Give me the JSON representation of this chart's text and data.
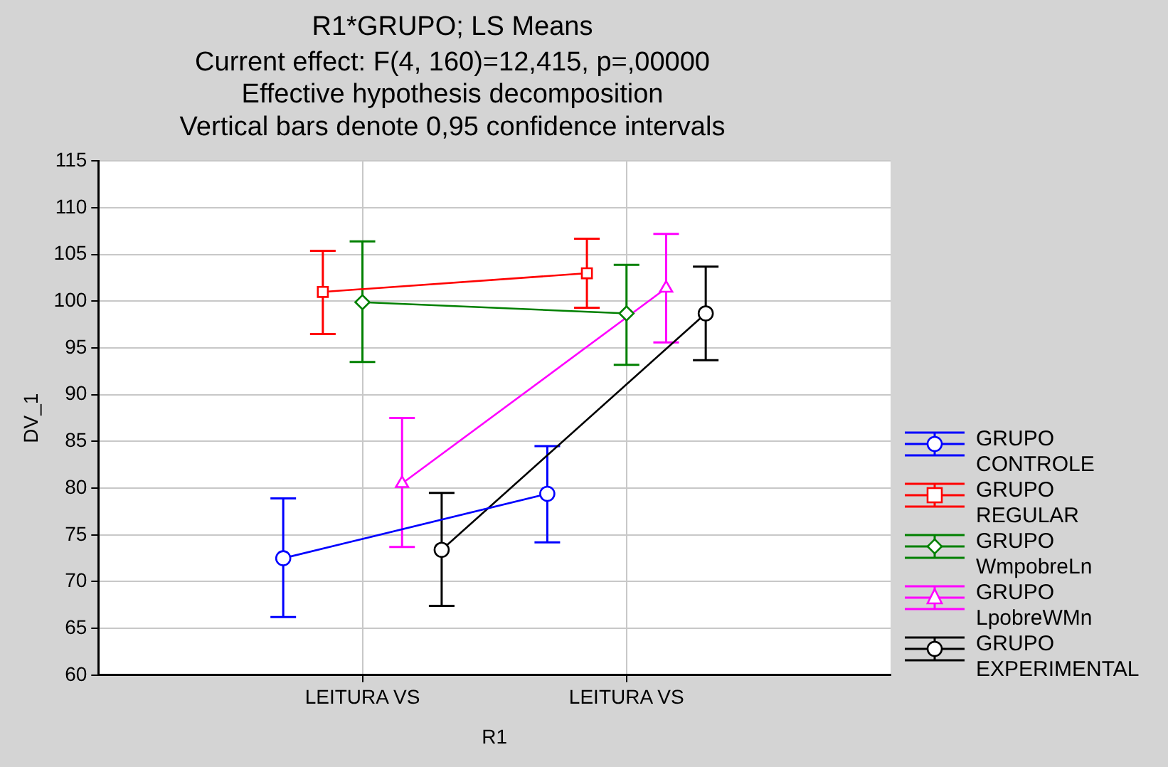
{
  "chart_data": {
    "type": "line",
    "title": "R1*GRUPO; LS Means",
    "subtitle": "Current effect: F(4, 160)=12,415, p=,00000\nEffective hypothesis decomposition\nVertical bars denote 0,95 confidence intervals",
    "xlabel": "R1",
    "ylabel": "DV_1",
    "categories": [
      "LEITURA VS",
      "LEITURA VS"
    ],
    "series": [
      {
        "name": "GRUPO CONTROLE",
        "color": "#0000ff",
        "marker": "circle",
        "values": [
          72.5,
          79.4
        ],
        "errors": [
          [
            66.2,
            78.9
          ],
          [
            74.2,
            84.5
          ]
        ]
      },
      {
        "name": "GRUPO REGULAR",
        "color": "#ff0000",
        "marker": "square",
        "values": [
          101,
          103
        ],
        "errors": [
          [
            96.5,
            105.4
          ],
          [
            99.3,
            106.7
          ]
        ]
      },
      {
        "name": "GRUPO WmpobreLn",
        "color": "#008000",
        "marker": "diamond",
        "values": [
          99.9,
          98.7
        ],
        "errors": [
          [
            93.5,
            106.4
          ],
          [
            93.2,
            103.9
          ]
        ]
      },
      {
        "name": "GRUPO LpobreWMn",
        "color": "#ff00ff",
        "marker": "triangle",
        "values": [
          80.5,
          101.4
        ],
        "errors": [
          [
            73.7,
            87.5
          ],
          [
            95.6,
            107.2
          ]
        ]
      },
      {
        "name": "GRUPO EXPERIMENTAL",
        "color": "#000000",
        "marker": "circle",
        "values": [
          73.4,
          98.7
        ],
        "errors": [
          [
            67.4,
            79.5
          ],
          [
            93.7,
            103.7
          ]
        ]
      }
    ],
    "ylim": [
      60,
      115
    ],
    "yticks": [
      60,
      65,
      70,
      75,
      80,
      85,
      90,
      95,
      100,
      105,
      110,
      115
    ],
    "grid": true,
    "legend": "right",
    "line_style": "solid"
  }
}
